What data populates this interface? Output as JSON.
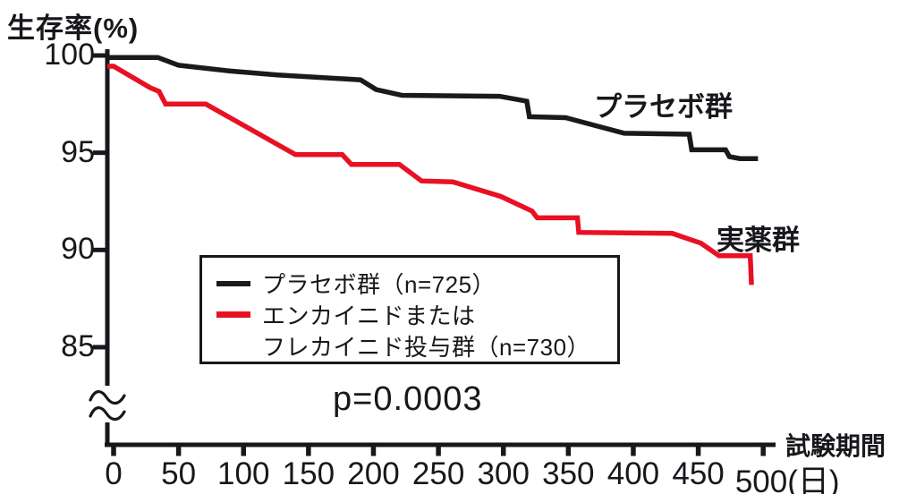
{
  "y_axis_title": "生存率(%)",
  "x_axis_title": "試験期間",
  "p_value_text": "p=0.0003",
  "curve_labels": {
    "placebo": "プラセボ群",
    "active": "実薬群"
  },
  "legend": {
    "rows": [
      {
        "swatch": "placebo",
        "text": "プラセボ群（n=725）"
      },
      {
        "swatch": "active",
        "text": "エンカイニドまたは"
      },
      {
        "swatch": "none",
        "text": "フレカイニド投与群（n=730）"
      }
    ]
  },
  "colors": {
    "placebo": "#1a1a1a",
    "active": "#e81123",
    "axis": "#17171c"
  },
  "chart_data": {
    "type": "line",
    "subtype": "kaplan-meier-survival",
    "title": "",
    "xlabel": "試験期間(日)",
    "ylabel": "生存率(%)",
    "x_ticks": [
      0,
      50,
      100,
      150,
      200,
      250,
      300,
      350,
      400,
      450,
      500
    ],
    "x_tick_labels": [
      "0",
      "50",
      "100",
      "150",
      "200",
      "250",
      "300",
      "350",
      "400",
      "450",
      "500(日)"
    ],
    "y_ticks": [
      100,
      95,
      90,
      85
    ],
    "y_tick_labels": [
      "100",
      "95",
      "90",
      "85"
    ],
    "xlim": [
      0,
      515
    ],
    "ylim_visible": [
      83,
      100
    ],
    "y_axis_break": true,
    "grid": false,
    "legend_position": "inside-lower-left",
    "p_value": "p=0.0003",
    "series": [
      {
        "id": "placebo",
        "name": "プラセボ群（n=725）",
        "n": 725,
        "color": "#1a1a1a",
        "points": [
          [
            0,
            99.9
          ],
          [
            34,
            99.9
          ],
          [
            50,
            99.5
          ],
          [
            90,
            99.2
          ],
          [
            126,
            99.0
          ],
          [
            190,
            98.75
          ],
          [
            202,
            98.25
          ],
          [
            222,
            97.95
          ],
          [
            297,
            97.9
          ],
          [
            318,
            97.65
          ],
          [
            320,
            96.85
          ],
          [
            348,
            96.8
          ],
          [
            393,
            96.0
          ],
          [
            443,
            95.95
          ],
          [
            445,
            95.15
          ],
          [
            471,
            95.15
          ],
          [
            474,
            94.8
          ],
          [
            482,
            94.7
          ],
          [
            496,
            94.7
          ]
        ]
      },
      {
        "id": "active",
        "name": "エンカイニドまたはフレカイニド投与群（n=730）",
        "n": 730,
        "color": "#e81123",
        "points": [
          [
            0,
            99.45
          ],
          [
            28,
            98.35
          ],
          [
            35,
            98.15
          ],
          [
            40,
            97.5
          ],
          [
            71,
            97.5
          ],
          [
            140,
            94.9
          ],
          [
            176,
            94.9
          ],
          [
            183,
            94.4
          ],
          [
            220,
            94.4
          ],
          [
            237,
            93.55
          ],
          [
            261,
            93.5
          ],
          [
            298,
            92.75
          ],
          [
            322,
            92.0
          ],
          [
            326,
            91.65
          ],
          [
            357,
            91.65
          ],
          [
            358,
            90.9
          ],
          [
            430,
            90.85
          ],
          [
            452,
            90.35
          ],
          [
            466,
            89.7
          ],
          [
            490,
            89.7
          ],
          [
            491,
            88.2
          ]
        ]
      }
    ]
  }
}
